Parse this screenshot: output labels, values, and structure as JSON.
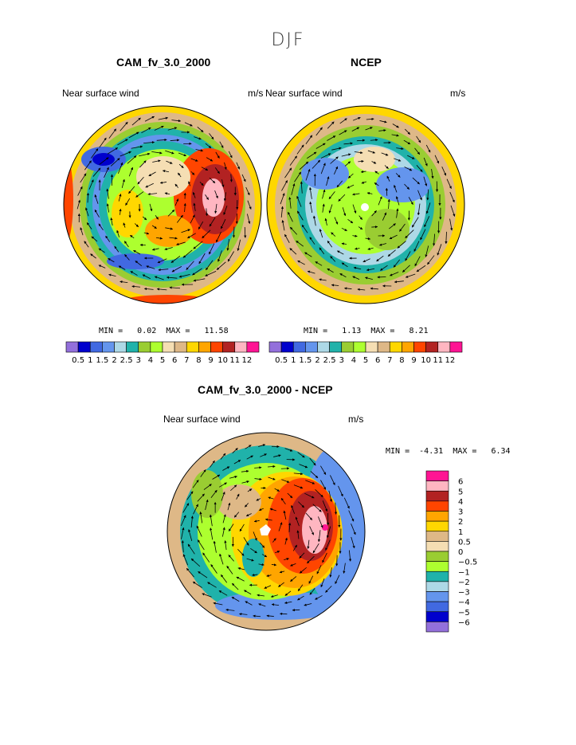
{
  "figure": {
    "season": "DJF"
  },
  "panels": [
    {
      "id": "model",
      "title": "CAM_fv_3.0_2000",
      "left_label": "Near surface wind",
      "right_label": "m/s",
      "min_label": "MIN =",
      "min_value": "0.02",
      "max_label": "MAX =",
      "max_value": "11.58"
    },
    {
      "id": "obs",
      "title": "NCEP",
      "left_label": "Near surface wind",
      "right_label": "m/s",
      "min_label": "MIN =",
      "min_value": "1.13",
      "max_label": "MAX =",
      "max_value": "8.21"
    },
    {
      "id": "diff",
      "title": "CAM_fv_3.0_2000 - NCEP",
      "left_label": "Near surface wind",
      "right_label": "m/s",
      "min_label": "MIN =",
      "min_value": "-4.31",
      "max_label": "MAX =",
      "max_value": "6.34"
    }
  ],
  "colorbars": {
    "absolute": {
      "labels": [
        "0.5",
        "1",
        "1.5",
        "2",
        "2.5",
        "3",
        "4",
        "5",
        "6",
        "7",
        "8",
        "9",
        "10",
        "11",
        "12"
      ],
      "colors": [
        "#9370db",
        "#0000cd",
        "#4169e1",
        "#6495ed",
        "#add8e6",
        "#20b2aa",
        "#9acd32",
        "#adff2f",
        "#f5deb3",
        "#deb887",
        "#ffd700",
        "#ffa500",
        "#ff4500",
        "#b22222",
        "#ffb6c1",
        "#ff1493"
      ]
    },
    "difference": {
      "labels": [
        "6",
        "5",
        "4",
        "3",
        "2",
        "1",
        "0.5",
        "0",
        "−0.5",
        "−1",
        "−2",
        "−3",
        "−4",
        "−5",
        "−6"
      ],
      "colors": [
        "#ff1493",
        "#ffb6c1",
        "#b22222",
        "#ff4500",
        "#ffa500",
        "#ffd700",
        "#deb887",
        "#f5deb3",
        "#9acd32",
        "#adff2f",
        "#20b2aa",
        "#add8e6",
        "#6495ed",
        "#4169e1",
        "#0000cd",
        "#9370db"
      ]
    }
  },
  "chart_data": [
    {
      "type": "heatmap",
      "title": "CAM_fv_3.0_2000",
      "subtitle": "Near surface wind",
      "units": "m/s",
      "projection": "south polar stereographic",
      "min": 0.02,
      "max": 11.58,
      "contour_levels": [
        0.5,
        1,
        1.5,
        2,
        2.5,
        3,
        4,
        5,
        6,
        7,
        8,
        9,
        10,
        11,
        12
      ],
      "vectors": true
    },
    {
      "type": "heatmap",
      "title": "NCEP",
      "subtitle": "Near surface wind",
      "units": "m/s",
      "projection": "south polar stereographic",
      "min": 1.13,
      "max": 8.21,
      "contour_levels": [
        0.5,
        1,
        1.5,
        2,
        2.5,
        3,
        4,
        5,
        6,
        7,
        8,
        9,
        10,
        11,
        12
      ],
      "vectors": true
    },
    {
      "type": "heatmap",
      "title": "CAM_fv_3.0_2000 - NCEP",
      "subtitle": "Near surface wind",
      "units": "m/s",
      "projection": "south polar stereographic",
      "min": -4.31,
      "max": 6.34,
      "contour_levels": [
        -6,
        -5,
        -4,
        -3,
        -2,
        -1,
        -0.5,
        0,
        0.5,
        1,
        2,
        3,
        4,
        5,
        6
      ],
      "vectors": true
    }
  ]
}
